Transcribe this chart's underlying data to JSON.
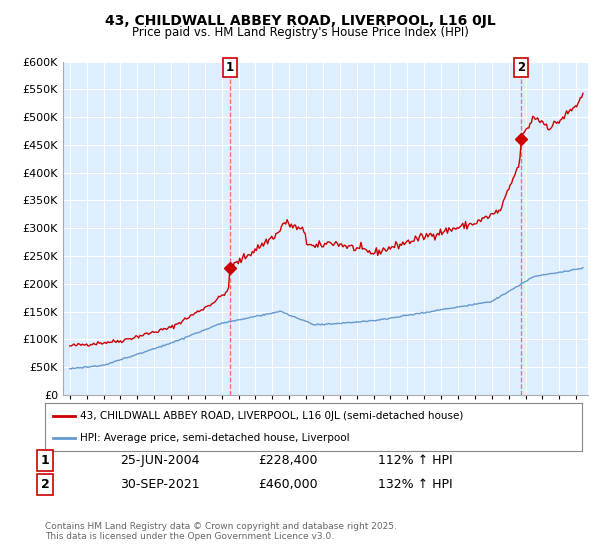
{
  "title": "43, CHILDWALL ABBEY ROAD, LIVERPOOL, L16 0JL",
  "subtitle": "Price paid vs. HM Land Registry's House Price Index (HPI)",
  "legend_line1": "43, CHILDWALL ABBEY ROAD, LIVERPOOL, L16 0JL (semi-detached house)",
  "legend_line2": "HPI: Average price, semi-detached house, Liverpool",
  "annotation1_date": "25-JUN-2004",
  "annotation1_price": "£228,400",
  "annotation1_hpi": "112% ↑ HPI",
  "annotation2_date": "30-SEP-2021",
  "annotation2_price": "£460,000",
  "annotation2_hpi": "132% ↑ HPI",
  "footnote": "Contains HM Land Registry data © Crown copyright and database right 2025.\nThis data is licensed under the Open Government Licence v3.0.",
  "house_color": "#cc0000",
  "hpi_color": "#6699cc",
  "plot_bg_color": "#ddeeff",
  "background_color": "#ffffff",
  "grid_color": "#ffffff",
  "vline_color": "#ff6666",
  "ylim": [
    0,
    600000
  ],
  "yticks": [
    0,
    50000,
    100000,
    150000,
    200000,
    250000,
    300000,
    350000,
    400000,
    450000,
    500000,
    550000,
    600000
  ],
  "xlim_start": 1994.6,
  "xlim_end": 2025.7,
  "marker1_x": 2004.49,
  "marker1_y": 228400,
  "marker2_x": 2021.75,
  "marker2_y": 460000,
  "title_fontsize": 10,
  "subtitle_fontsize": 9
}
